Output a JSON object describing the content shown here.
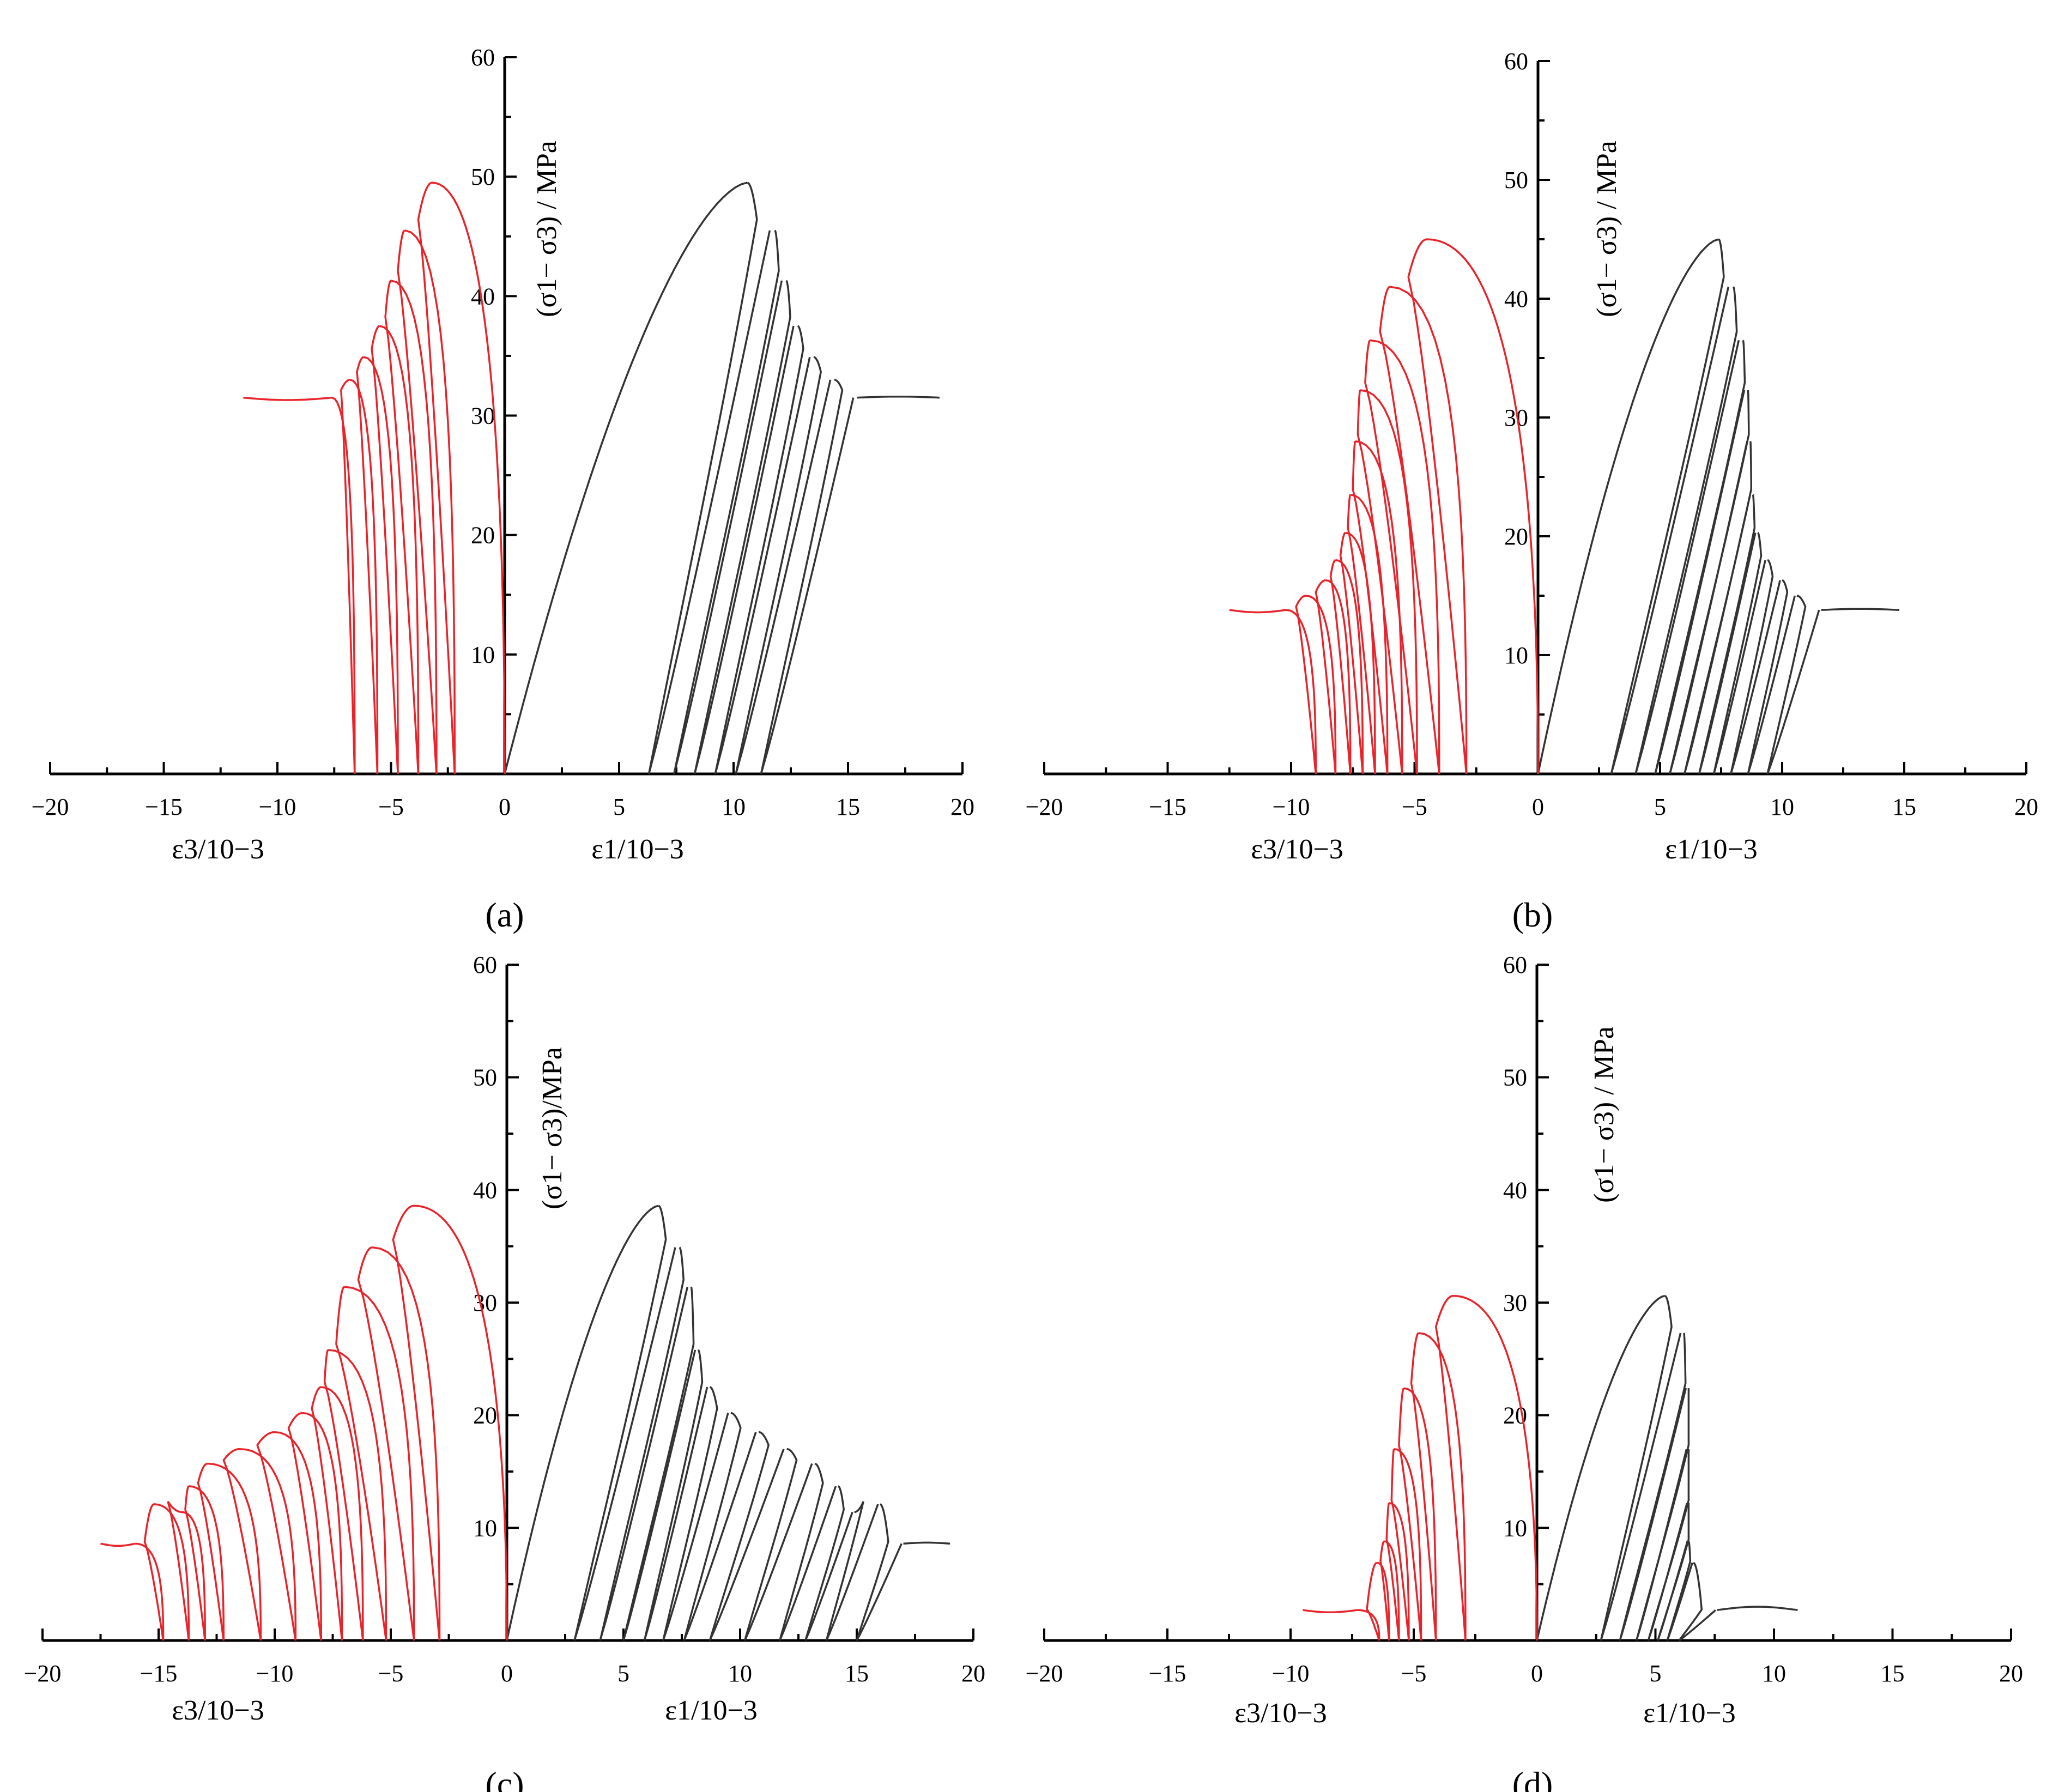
{
  "figure": {
    "panels": [
      {
        "label": "a",
        "caption": "(a)",
        "x_tick_labels": [
          "−20",
          "−15",
          "−10",
          "−5",
          "0",
          "5",
          "10",
          "15",
          "20"
        ],
        "y_tick_labels": [
          "10",
          "20",
          "30",
          "40",
          "50",
          "60"
        ],
        "y_axis_label": "(σ1− σ3) / MPa",
        "x_label_left": "ε3/10−3",
        "x_label_right": "ε1/10−3"
      },
      {
        "label": "b",
        "caption": "(b)",
        "x_tick_labels": [
          "−20",
          "−15",
          "−10",
          "−5",
          "0",
          "5",
          "10",
          "15",
          "20"
        ],
        "y_tick_labels": [
          "10",
          "20",
          "30",
          "40",
          "50",
          "60"
        ],
        "y_axis_label": "(σ1− σ3) / MPa",
        "x_label_left": "ε3/10−3",
        "x_label_right": "ε1/10−3"
      },
      {
        "label": "c",
        "caption": "(c)",
        "x_tick_labels": [
          "−20",
          "−15",
          "−10",
          "−5",
          "0",
          "5",
          "10",
          "15",
          "20"
        ],
        "y_tick_labels": [
          "10",
          "20",
          "30",
          "40",
          "50",
          "60"
        ],
        "y_axis_label": "(σ1− σ3)/MPa",
        "x_label_left": "ε3/10−3",
        "x_label_right": "ε1/10−3"
      },
      {
        "label": "d",
        "caption": "(d)",
        "x_tick_labels": [
          "−20",
          "−15",
          "−10",
          "−5",
          "0",
          "5",
          "10",
          "15",
          "20"
        ],
        "y_tick_labels": [
          "10",
          "20",
          "30",
          "40",
          "50",
          "60"
        ],
        "y_axis_label": "(σ1− σ3) / MPa",
        "x_label_left": "ε3/10−3",
        "x_label_right": "ε1/10−3"
      }
    ]
  },
  "chart_data": [
    {
      "type": "line",
      "panel": "a",
      "xlim": [
        -20,
        20
      ],
      "ylim": [
        0,
        60
      ],
      "xlabel": "ε1/10−3 (right), ε3/10−3 (left)",
      "ylabel": "(σ1− σ3) / MPa",
      "colors": {
        "axial": "#333333",
        "lateral": "#e8232a"
      },
      "peaks": [
        49.5,
        45.5,
        41.3,
        37.5,
        34.9,
        33.0
      ],
      "axial_peak_strain": [
        10.6,
        11.8,
        12.3,
        12.8,
        13.5,
        14.4
      ],
      "axial_unload_strain": [
        6.3,
        7.4,
        8.3,
        9.2,
        10.1,
        11.2
      ],
      "lateral_peak_strain": [
        -3.2,
        -4.4,
        -5.0,
        -5.5,
        -6.2,
        -6.8
      ],
      "lateral_unload_strain": [
        -2.2,
        -3.0,
        -3.8,
        -4.7,
        -5.6,
        -6.6
      ],
      "residual": 31.5,
      "residual_axial_end": 19.0,
      "residual_lateral_end": -11.5
    },
    {
      "type": "line",
      "panel": "b",
      "xlim": [
        -20,
        20
      ],
      "ylim": [
        0,
        60
      ],
      "xlabel": "ε1/10−3 (right), ε3/10−3 (left)",
      "ylabel": "(σ1− σ3) / MPa",
      "colors": {
        "axial": "#333333",
        "lateral": "#e8232a"
      },
      "peaks": [
        45.0,
        41.0,
        36.5,
        32.3,
        28.0,
        23.5,
        20.3,
        18.0,
        16.3,
        15.0
      ],
      "axial_peak_strain": [
        7.4,
        8.0,
        8.4,
        8.6,
        8.7,
        8.8,
        9.0,
        9.4,
        10.0,
        10.6
      ],
      "axial_unload_strain": [
        3.0,
        4.0,
        4.8,
        5.4,
        6.0,
        6.6,
        7.2,
        7.9,
        8.6,
        9.4
      ],
      "lateral_peak_strain": [
        -4.5,
        -6.0,
        -6.8,
        -7.2,
        -7.4,
        -7.6,
        -7.8,
        -8.2,
        -8.6,
        -9.4
      ],
      "lateral_unload_strain": [
        -2.9,
        -4.0,
        -4.9,
        -5.5,
        -6.1,
        -6.6,
        -7.1,
        -7.6,
        -8.2,
        -9.0
      ],
      "residual": 13.8,
      "residual_axial_end": 14.8,
      "residual_lateral_end": -12.5
    },
    {
      "type": "line",
      "panel": "c",
      "xlim": [
        -20,
        20
      ],
      "ylim": [
        0,
        60
      ],
      "xlabel": "ε1/10−3 (right), ε3/10−3 (left)",
      "ylabel": "(σ1− σ3)/MPa",
      "colors": {
        "axial": "#333333",
        "lateral": "#e8232a"
      },
      "peaks": [
        38.6,
        34.9,
        31.4,
        25.8,
        22.5,
        20.2,
        18.5,
        17.0,
        15.7,
        13.7,
        11.4,
        12.1
      ],
      "axial_peak_strain": [
        6.5,
        7.4,
        7.9,
        8.2,
        8.7,
        9.6,
        10.8,
        12.0,
        13.2,
        14.2,
        14.9,
        16.0
      ],
      "axial_unload_strain": [
        2.9,
        4.0,
        5.0,
        5.9,
        6.7,
        7.6,
        8.7,
        10.2,
        11.7,
        12.8,
        13.7,
        15.0
      ],
      "lateral_peak_strain": [
        -4.0,
        -5.8,
        -7.0,
        -7.7,
        -8.0,
        -8.8,
        -10.0,
        -11.5,
        -12.9,
        -13.7,
        -14.0,
        -15.2
      ],
      "lateral_unload_strain": [
        -2.9,
        -4.0,
        -5.2,
        -6.2,
        -7.1,
        -8.0,
        -9.1,
        -10.6,
        -12.2,
        -13.0,
        -13.7,
        -14.8
      ],
      "residual": 8.6,
      "residual_axial_end": 19.0,
      "residual_lateral_end": -17.5
    },
    {
      "type": "line",
      "panel": "d",
      "xlim": [
        -20,
        20
      ],
      "ylim": [
        0,
        60
      ],
      "xlabel": "ε1/10−3 (right), ε3/10−3 (left)",
      "ylabel": "(σ1− σ3) / MPa",
      "colors": {
        "axial": "#333333",
        "lateral": "#e8232a"
      },
      "peaks": [
        30.6,
        27.3,
        22.4,
        17.0,
        12.2,
        8.8,
        6.9
      ],
      "axial_peak_strain": [
        5.4,
        6.2,
        6.4,
        6.4,
        6.4,
        6.4,
        6.6
      ],
      "axial_unload_strain": [
        2.7,
        3.5,
        4.2,
        4.7,
        5.1,
        5.5,
        6.0
      ],
      "lateral_peak_strain": [
        -3.4,
        -4.8,
        -5.4,
        -5.8,
        -6.0,
        -6.2,
        -6.5
      ],
      "lateral_unload_strain": [
        -2.9,
        -4.1,
        -4.7,
        -5.2,
        -5.6,
        -6.0,
        -6.4
      ],
      "residual": 2.7,
      "residual_axial_end": 11.0,
      "residual_lateral_end": -9.5
    }
  ]
}
